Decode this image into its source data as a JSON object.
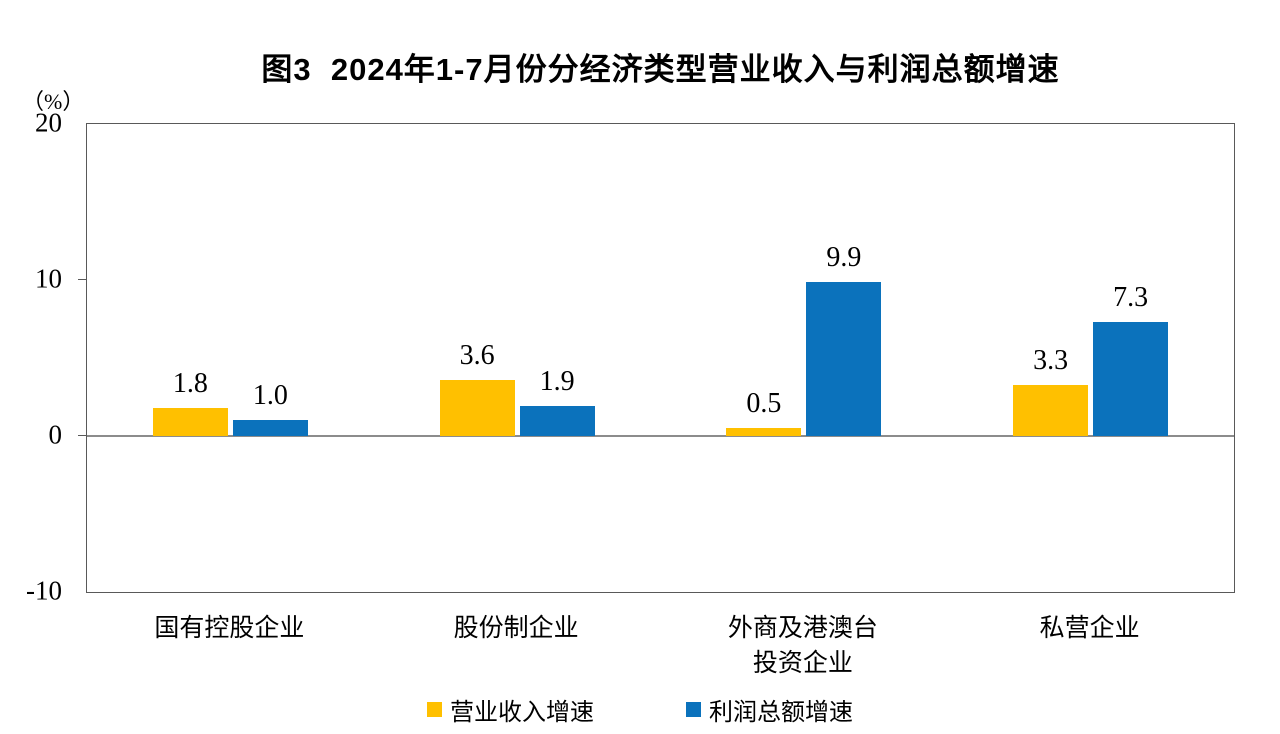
{
  "chart_data": {
    "type": "bar",
    "title": "图3  2024年1-7月份分经济类型营业收入与利润总额增速",
    "unit_label": "（%）",
    "categories": [
      "国有控股企业",
      "股份制企业",
      "外商及港澳台\n投资企业",
      "私营企业"
    ],
    "series": [
      {
        "name": "营业收入增速",
        "color": "#FFC000",
        "values": [
          1.8,
          3.6,
          0.5,
          3.3
        ]
      },
      {
        "name": "利润总额增速",
        "color": "#0B72BC",
        "values": [
          1.0,
          1.9,
          9.9,
          7.3
        ]
      }
    ],
    "ylim": [
      -10,
      20
    ],
    "yticks": [
      20,
      10,
      0,
      -10
    ],
    "grid": false,
    "legend_position": "bottom",
    "value_label_decimals": 1
  }
}
